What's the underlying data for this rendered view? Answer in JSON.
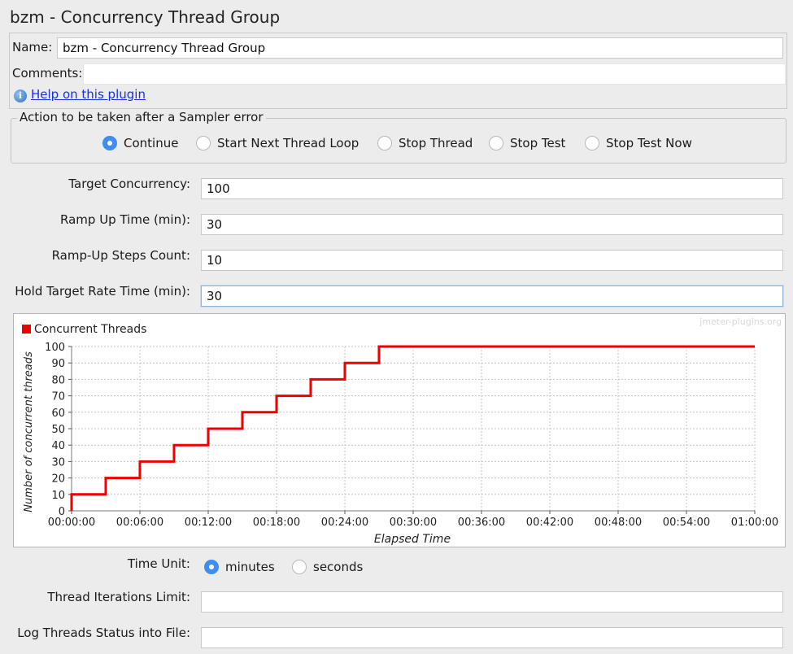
{
  "window": {
    "title": "bzm - Concurrency Thread Group"
  },
  "name_panel": {
    "name_label": "Name:",
    "name_value": "bzm - Concurrency Thread Group",
    "comments_label": "Comments:",
    "comments_value": "",
    "help_link": "Help on this plugin",
    "help_icon": "info-icon"
  },
  "sampler_error": {
    "legend": "Action to be taken after a Sampler error",
    "options": [
      "Continue",
      "Start Next Thread Loop",
      "Stop Thread",
      "Stop Test",
      "Stop Test Now"
    ],
    "selected": "Continue"
  },
  "settings": {
    "target_concurrency_label": "Target Concurrency:",
    "target_concurrency": "100",
    "ramp_up_label": "Ramp Up Time (min):",
    "ramp_up": "30",
    "steps_label": "Ramp-Up Steps Count:",
    "steps": "10",
    "hold_label": "Hold Target Rate Time (min):",
    "hold": "30"
  },
  "chart_data": {
    "type": "line",
    "step": true,
    "watermark": "jmeter-plugins.org",
    "legend": "Concurrent Threads",
    "legend_position": "top-left",
    "xlabel": "Elapsed Time",
    "ylabel": "Number of concurrent threads",
    "xlim": [
      0,
      60
    ],
    "ylim": [
      0,
      100
    ],
    "x_ticks": [
      "00:00:00",
      "00:06:00",
      "00:12:00",
      "00:18:00",
      "00:24:00",
      "00:30:00",
      "00:36:00",
      "00:42:00",
      "00:48:00",
      "00:54:00",
      "01:00:00"
    ],
    "y_ticks": [
      "0",
      "10",
      "20",
      "30",
      "40",
      "50",
      "60",
      "70",
      "80",
      "90",
      "100"
    ],
    "grid": true,
    "color": "#ee0000",
    "series": [
      {
        "name": "Concurrent Threads",
        "points": [
          [
            0,
            0
          ],
          [
            0,
            10
          ],
          [
            3,
            10
          ],
          [
            3,
            20
          ],
          [
            6,
            20
          ],
          [
            6,
            30
          ],
          [
            9,
            30
          ],
          [
            9,
            40
          ],
          [
            12,
            40
          ],
          [
            12,
            50
          ],
          [
            15,
            50
          ],
          [
            15,
            60
          ],
          [
            18,
            60
          ],
          [
            18,
            70
          ],
          [
            21,
            70
          ],
          [
            21,
            80
          ],
          [
            24,
            80
          ],
          [
            24,
            90
          ],
          [
            27,
            90
          ],
          [
            27,
            100
          ],
          [
            60,
            100
          ]
        ]
      }
    ]
  },
  "time_unit": {
    "label": "Time Unit:",
    "options": [
      "minutes",
      "seconds"
    ],
    "selected": "minutes"
  },
  "iterations": {
    "label": "Thread Iterations Limit:",
    "value": ""
  },
  "log_file": {
    "label": "Log Threads Status into File:",
    "value": ""
  }
}
